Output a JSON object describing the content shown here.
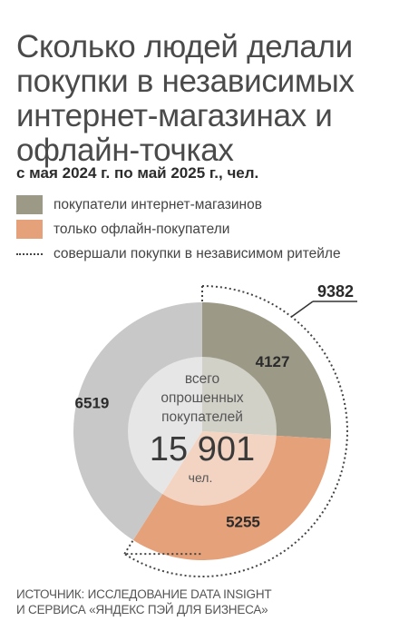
{
  "header": {
    "title": "Сколько людей делали покупки в независимых интернет-магазинах и офлайн-точках",
    "subtitle": "с мая 2024 г. по май 2025 г., чел."
  },
  "legend": [
    {
      "label": "покупатели интернет-магазинов",
      "color": "#9c9a86",
      "kind": "swatch"
    },
    {
      "label": "только офлайн-покупатели",
      "color": "#e5a17a",
      "kind": "swatch"
    },
    {
      "label": "совершали покупки в независимом ритейле",
      "kind": "dotted"
    }
  ],
  "chart_data": {
    "type": "pie",
    "total": 15901,
    "total_label": "15 901",
    "center_text": [
      "всего",
      "опрошенных",
      "покупателей"
    ],
    "unit": "чел.",
    "slices": [
      {
        "name": "покупатели интернет-магазинов",
        "value": 4127,
        "label": "4127",
        "color": "#9c9a86"
      },
      {
        "name": "только офлайн-покупатели",
        "value": 5255,
        "label": "5255",
        "color": "#e5a17a"
      },
      {
        "name": "",
        "value": 6519,
        "label": "6519",
        "color": "#c8c8c8"
      }
    ],
    "bracket": {
      "value": 9382,
      "label": "9382"
    }
  },
  "source": {
    "line1": "ИСТОЧНИК: ИССЛЕДОВАНИЕ DATA INSIGHT",
    "line2": "И СЕРВИСА «ЯНДЕКС ПЭЙ ДЛЯ БИЗНЕСА»"
  }
}
